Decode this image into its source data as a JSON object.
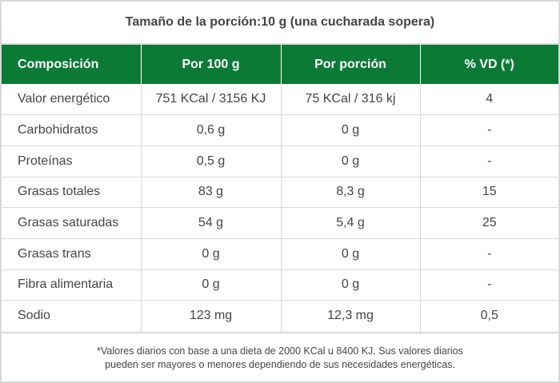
{
  "title": "Tamaño de la porción:10 g (una cucharada sopera)",
  "table": {
    "headers": [
      "Composición",
      "Por 100 g",
      "Por porción",
      "% VD (*)"
    ],
    "rows": [
      [
        "Valor energético",
        "751 KCal / 3156 KJ",
        "75 KCal / 316 kj",
        "4"
      ],
      [
        "Carbohidratos",
        "0,6 g",
        "0 g",
        "-"
      ],
      [
        "Proteínas",
        "0,5 g",
        "0 g",
        "-"
      ],
      [
        "Grasas totales",
        "83 g",
        "8,3 g",
        "15"
      ],
      [
        "Grasas saturadas",
        "54 g",
        "5,4 g",
        "25"
      ],
      [
        "Grasas trans",
        "0 g",
        "0 g",
        "-"
      ],
      [
        "Fibra alimentaria",
        "0 g",
        "0 g",
        "-"
      ],
      [
        "Sodio",
        "123 mg",
        "12,3 mg",
        "0,5"
      ]
    ]
  },
  "footer": {
    "line1": "*Valores diarios con base a una dieta de 2000 KCal u 8400 KJ. Sus valores diarios",
    "line2": "pueden ser mayores o menores dependiendo de sus necesidades energéticas."
  },
  "colors": {
    "header_bg": "#0b7a35",
    "border": "#d9d9d9",
    "text": "#444444"
  }
}
